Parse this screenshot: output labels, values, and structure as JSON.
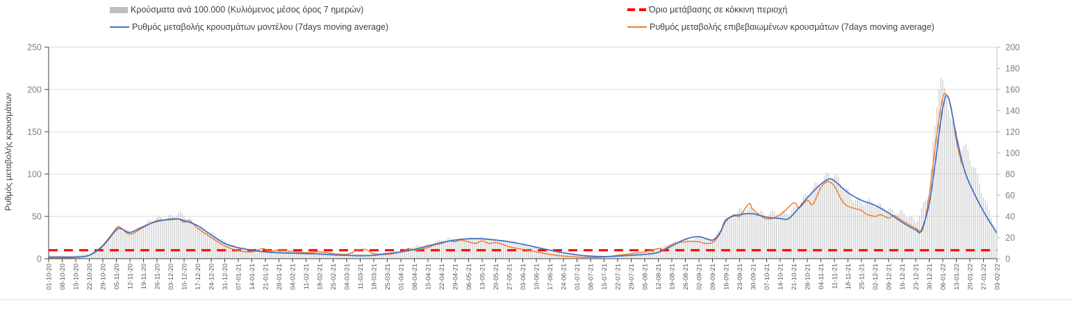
{
  "legend": {
    "items": [
      {
        "label": "Κρούσματα ανά 100.000 (Κυλιόμενος μέσος όρος 7 ημερών)",
        "marker": "bar-swatch",
        "color": "#bfbfbf"
      },
      {
        "label": "Όριο μετάβασης σε κόκκινη περιοχή",
        "marker": "dashed-line",
        "color": "#ff0000"
      },
      {
        "label": "Ρυθμός μεταβολής κρουσμάτων μοντέλου (7days moving average)",
        "marker": "line",
        "color": "#4472c4"
      },
      {
        "label": "Ρυθμός μεταβολής επιβεβαιωμένων κρουσμάτων (7days moving average)",
        "marker": "line",
        "color": "#ed7d31"
      }
    ]
  },
  "axes": {
    "left": {
      "title": "Ρυθμός μεταβολής κρουσμάτων",
      "ticks": [
        0,
        50,
        100,
        150,
        200,
        250
      ]
    },
    "right": {
      "ticks": [
        0,
        20,
        40,
        60,
        80,
        100,
        120,
        140,
        160,
        180,
        200
      ]
    }
  },
  "colors": {
    "bars": "#c4c4c4",
    "model_line": "#4472c4",
    "confirmed_line": "#ed7d31",
    "threshold": "#ff0000",
    "grid": "#d9d9d9",
    "axis_line": "#404040",
    "right_axis_line": "#bfbfbf",
    "y_tick_text": "#7f7f7f",
    "x_tick_text": "#595959"
  },
  "chart_data": {
    "type": "bar+line",
    "title": "",
    "xlabel": "",
    "ylabel": "Ρυθμός μεταβολής κρουσμάτων",
    "legend_position": "top",
    "grid": "horizontal",
    "x_labels": [
      "01-10-20",
      "08-10-20",
      "15-10-20",
      "22-10-20",
      "29-10-20",
      "05-11-20",
      "12-11-20",
      "19-11-20",
      "26-11-20",
      "03-12-20",
      "10-12-20",
      "17-12-20",
      "24-12-20",
      "31-12-20",
      "07-01-21",
      "14-01-21",
      "21-01-21",
      "28-01-21",
      "04-02-21",
      "11-02-21",
      "18-02-21",
      "25-02-21",
      "04-03-21",
      "11-03-21",
      "18-03-21",
      "25-03-21",
      "01-04-21",
      "08-04-21",
      "15-04-21",
      "22-04-21",
      "29-04-21",
      "06-05-21",
      "13-05-21",
      "20-05-21",
      "27-05-21",
      "03-06-21",
      "10-06-21",
      "17-06-21",
      "24-06-21",
      "01-07-21",
      "08-07-21",
      "15-07-21",
      "22-07-21",
      "29-07-21",
      "05-08-21",
      "12-08-21",
      "19-08-21",
      "26-08-21",
      "02-09-21",
      "09-09-21",
      "16-09-21",
      "23-09-21",
      "30-09-21",
      "07-10-21",
      "14-10-21",
      "21-10-21",
      "28-10-21",
      "04-11-21",
      "11-11-21",
      "18-11-21",
      "25-11-21",
      "02-12-21",
      "09-12-21",
      "16-12-21",
      "23-12-21",
      "30-12-21",
      "06-01-22",
      "13-01-22",
      "20-01-22",
      "27-01-22",
      "03-02-22"
    ],
    "left_axis": {
      "range": [
        0,
        250
      ],
      "tick_step": 50
    },
    "right_axis": {
      "range": [
        0,
        200
      ],
      "tick_step": 20
    },
    "threshold_line": {
      "name": "Όριο μετάβασης σε κόκκινη περιοχή",
      "axis": "left",
      "value": 10,
      "color": "#ff0000",
      "style": "dashed"
    },
    "points_note": "series points are [week_index, value]; week_index indexes x_labels (fractions = days between weekly ticks); bar series holds weekly anchors of the daily bars, values estimated from gridlines",
    "series": [
      {
        "name": "Κρούσματα ανά 100.000 (Κυλιόμενος μέσος όρος 7 ημερών)",
        "type": "bar",
        "axis": "right",
        "color": "#c4c4c4",
        "points": [
          [
            0,
            3
          ],
          [
            1,
            3
          ],
          [
            2,
            3
          ],
          [
            3,
            5
          ],
          [
            4,
            13
          ],
          [
            5,
            28
          ],
          [
            6,
            26
          ],
          [
            7,
            31
          ],
          [
            8,
            38
          ],
          [
            9,
            41
          ],
          [
            9.5,
            42
          ],
          [
            10,
            40
          ],
          [
            11,
            32
          ],
          [
            12,
            24
          ],
          [
            13,
            16
          ],
          [
            14,
            11
          ],
          [
            15,
            9
          ],
          [
            16,
            8
          ],
          [
            17,
            8
          ],
          [
            18,
            7
          ],
          [
            19,
            7
          ],
          [
            20,
            7
          ],
          [
            21,
            6
          ],
          [
            22,
            5
          ],
          [
            23,
            5
          ],
          [
            24,
            5
          ],
          [
            25,
            6
          ],
          [
            26,
            8
          ],
          [
            27,
            11
          ],
          [
            28,
            14
          ],
          [
            29,
            17
          ],
          [
            30,
            19
          ],
          [
            31,
            19
          ],
          [
            32,
            19
          ],
          [
            33,
            18
          ],
          [
            34,
            16
          ],
          [
            35,
            13
          ],
          [
            36,
            10
          ],
          [
            37,
            7
          ],
          [
            38,
            5
          ],
          [
            39,
            3
          ],
          [
            40,
            2
          ],
          [
            41,
            2
          ],
          [
            42,
            3
          ],
          [
            43,
            5
          ],
          [
            44,
            7
          ],
          [
            45,
            10
          ],
          [
            46,
            14
          ],
          [
            47,
            18
          ],
          [
            48,
            20
          ],
          [
            49,
            18
          ],
          [
            50,
            35
          ],
          [
            51,
            44
          ],
          [
            52,
            48
          ],
          [
            53,
            42
          ],
          [
            54,
            42
          ],
          [
            55,
            48
          ],
          [
            56,
            58
          ],
          [
            57,
            75
          ],
          [
            57.6,
            82
          ],
          [
            58,
            76
          ],
          [
            59,
            62
          ],
          [
            60,
            55
          ],
          [
            61,
            50
          ],
          [
            62,
            48
          ],
          [
            63,
            42
          ],
          [
            64,
            35
          ],
          [
            65,
            65
          ],
          [
            65.8,
            173
          ],
          [
            66,
            165
          ],
          [
            66.5,
            140
          ],
          [
            67,
            120
          ],
          [
            68,
            93
          ],
          [
            69,
            62
          ],
          [
            70,
            25
          ]
        ]
      },
      {
        "name": "Ρυθμός μεταβολής κρουσμάτων μοντέλου (7days moving average)",
        "type": "line",
        "axis": "left",
        "color": "#4472c4",
        "points": [
          [
            0,
            2
          ],
          [
            1,
            2
          ],
          [
            2,
            2
          ],
          [
            3,
            4
          ],
          [
            4,
            15
          ],
          [
            5,
            34
          ],
          [
            5.4,
            35
          ],
          [
            6,
            31
          ],
          [
            7,
            38
          ],
          [
            8,
            44
          ],
          [
            9.3,
            47
          ],
          [
            10,
            45
          ],
          [
            11,
            39
          ],
          [
            12,
            28
          ],
          [
            13,
            18
          ],
          [
            14,
            13
          ],
          [
            15,
            10
          ],
          [
            16,
            8
          ],
          [
            17,
            7
          ],
          [
            18,
            6.5
          ],
          [
            19,
            6
          ],
          [
            20,
            5.5
          ],
          [
            21,
            4.5
          ],
          [
            22,
            4
          ],
          [
            23,
            3.5
          ],
          [
            24,
            4
          ],
          [
            25,
            6
          ],
          [
            26,
            8
          ],
          [
            27,
            11
          ],
          [
            28,
            15
          ],
          [
            29,
            19
          ],
          [
            30,
            22
          ],
          [
            31,
            23.5
          ],
          [
            32,
            23.5
          ],
          [
            33,
            22
          ],
          [
            34,
            20
          ],
          [
            35,
            17
          ],
          [
            36,
            13.5
          ],
          [
            37,
            10
          ],
          [
            38,
            7
          ],
          [
            39,
            4.5
          ],
          [
            40,
            3
          ],
          [
            41,
            2.5
          ],
          [
            42,
            3
          ],
          [
            43,
            4
          ],
          [
            44,
            5
          ],
          [
            45,
            7.5
          ],
          [
            46,
            15
          ],
          [
            47,
            23
          ],
          [
            48,
            26
          ],
          [
            49,
            22
          ],
          [
            49.6,
            32
          ],
          [
            50,
            46
          ],
          [
            51,
            52
          ],
          [
            52,
            53
          ],
          [
            53,
            49
          ],
          [
            54,
            47.5
          ],
          [
            54.5,
            46.5
          ],
          [
            55,
            53
          ],
          [
            56,
            72
          ],
          [
            57,
            88
          ],
          [
            57.6,
            94
          ],
          [
            58,
            92
          ],
          [
            59,
            78
          ],
          [
            60,
            69
          ],
          [
            61,
            63
          ],
          [
            62,
            54
          ],
          [
            63,
            43
          ],
          [
            64,
            34
          ],
          [
            64.4,
            33
          ],
          [
            65,
            65
          ],
          [
            65.5,
            120
          ],
          [
            66,
            178
          ],
          [
            66.4,
            191
          ],
          [
            67,
            145
          ],
          [
            67.5,
            110
          ],
          [
            68,
            88
          ],
          [
            69,
            56
          ],
          [
            70,
            30
          ]
        ]
      },
      {
        "name": "Ρυθμός μεταβολής επιβεβαιωμένων κρουσμάτων (7days moving average)",
        "type": "line",
        "axis": "left",
        "color": "#ed7d31",
        "points": [
          [
            0,
            1
          ],
          [
            1,
            1
          ],
          [
            2,
            1.5
          ],
          [
            3,
            4
          ],
          [
            4,
            16
          ],
          [
            5,
            36
          ],
          [
            5.3,
            37
          ],
          [
            6,
            29
          ],
          [
            7,
            37
          ],
          [
            8,
            45
          ],
          [
            9,
            46
          ],
          [
            9.6,
            47
          ],
          [
            10,
            43
          ],
          [
            10.4,
            45
          ],
          [
            11,
            36
          ],
          [
            12,
            25
          ],
          [
            13,
            15
          ],
          [
            14,
            9.5
          ],
          [
            15,
            8
          ],
          [
            15.8,
            12
          ],
          [
            16.3,
            9
          ],
          [
            17,
            10
          ],
          [
            18,
            8.5
          ],
          [
            19,
            7
          ],
          [
            20,
            8
          ],
          [
            21,
            6
          ],
          [
            22,
            5
          ],
          [
            22.8,
            10
          ],
          [
            23.4,
            11
          ],
          [
            24,
            6
          ],
          [
            25,
            5
          ],
          [
            26,
            8
          ],
          [
            26.6,
            12
          ],
          [
            27,
            10
          ],
          [
            28,
            13
          ],
          [
            28.4,
            16
          ],
          [
            29,
            18
          ],
          [
            29.6,
            21
          ],
          [
            30,
            20
          ],
          [
            30.4,
            22
          ],
          [
            31,
            20
          ],
          [
            31.5,
            18
          ],
          [
            32,
            21
          ],
          [
            32.5,
            18
          ],
          [
            33,
            19
          ],
          [
            33.5,
            17
          ],
          [
            34,
            14
          ],
          [
            35,
            11
          ],
          [
            36,
            8
          ],
          [
            37,
            5
          ],
          [
            38,
            3
          ],
          [
            39,
            2
          ],
          [
            40,
            1.5
          ],
          [
            41,
            2
          ],
          [
            42,
            4
          ],
          [
            43,
            6
          ],
          [
            44,
            8
          ],
          [
            45,
            12
          ],
          [
            45.4,
            11
          ],
          [
            46,
            17
          ],
          [
            47,
            20
          ],
          [
            48,
            20
          ],
          [
            48.4,
            18
          ],
          [
            49,
            19
          ],
          [
            49.5,
            28
          ],
          [
            50,
            44
          ],
          [
            50.6,
            52
          ],
          [
            51,
            50
          ],
          [
            51.7,
            65
          ],
          [
            52,
            58
          ],
          [
            53,
            47
          ],
          [
            54,
            52
          ],
          [
            55,
            66
          ],
          [
            55.4,
            60
          ],
          [
            56,
            69
          ],
          [
            56.4,
            64
          ],
          [
            57,
            84
          ],
          [
            57.5,
            91
          ],
          [
            58,
            86
          ],
          [
            58.5,
            70
          ],
          [
            59,
            62
          ],
          [
            60,
            57
          ],
          [
            60.3,
            53
          ],
          [
            61,
            50
          ],
          [
            61.4,
            52
          ],
          [
            62,
            48
          ],
          [
            62.4,
            51
          ],
          [
            63,
            45
          ],
          [
            64,
            36
          ],
          [
            64.5,
            34
          ],
          [
            65,
            75
          ],
          [
            65.5,
            140
          ],
          [
            66,
            190
          ],
          [
            66.3,
            193
          ],
          [
            66.6,
            180
          ],
          [
            67,
            140
          ],
          [
            67.4,
            112
          ]
        ]
      }
    ]
  }
}
